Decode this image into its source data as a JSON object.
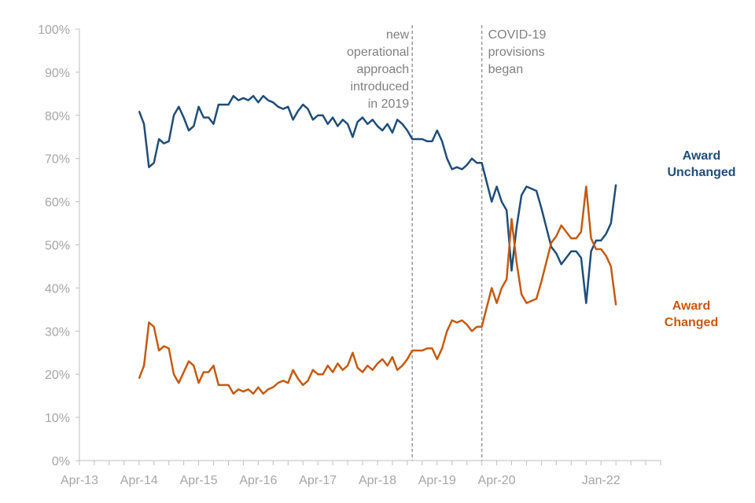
{
  "chart_data": {
    "type": "line",
    "title": "",
    "xlabel": "",
    "ylabel": "",
    "ylim": [
      0,
      100
    ],
    "y_tick_labels": [
      "0%",
      "10%",
      "20%",
      "30%",
      "40%",
      "50%",
      "60%",
      "70%",
      "80%",
      "90%",
      "100%"
    ],
    "x_tick_labels": [
      "Apr-13",
      "Apr-14",
      "Apr-15",
      "Apr-16",
      "Apr-17",
      "Apr-18",
      "Apr-19",
      "Apr-20",
      "Jan-22"
    ],
    "grid": false,
    "legend": "none (series labelled directly at right end of lines)",
    "colors": {
      "unchanged": "#1f4e79",
      "changed": "#c55a11",
      "axis": "#bfbfbf",
      "ticks": "#a6a6a6",
      "annotation": "#808080"
    },
    "annotations": [
      {
        "lines": [
          "new",
          "operational",
          "approach",
          "introduced",
          "in 2019"
        ],
        "at_month_index": 67
      },
      {
        "lines": [
          "COVID-19",
          "provisions",
          "began"
        ],
        "at_month_index": 81
      }
    ],
    "series": [
      {
        "name": "Award Unchanged",
        "label_lines": [
          "Award",
          "Unchanged"
        ],
        "color": "#1f4e79",
        "values": [
          81,
          78,
          68,
          69,
          74.5,
          73.5,
          74,
          80,
          82,
          79.5,
          76.5,
          77.5,
          82,
          79.5,
          79.5,
          78,
          82.5,
          82.5,
          82.5,
          84.5,
          83.5,
          84,
          83.5,
          84.5,
          83,
          84.5,
          83.5,
          83,
          82,
          81.5,
          82,
          79,
          81,
          82.5,
          81.5,
          79,
          80,
          80,
          78,
          79.5,
          77.5,
          79,
          78,
          75,
          78.5,
          79.5,
          78,
          79,
          77.5,
          76.5,
          78,
          76,
          79,
          78,
          76.5,
          74.5,
          74.5,
          74.5,
          74,
          74,
          76.5,
          74,
          70,
          67.5,
          68,
          67.5,
          68.5,
          70,
          69,
          69,
          64.5,
          60,
          63.5,
          60,
          58,
          44,
          54,
          61.5,
          63.5,
          63,
          62.5,
          58.5,
          54,
          49.5,
          48,
          45.5,
          47,
          48.5,
          48.5,
          47,
          36.5,
          48.5,
          51,
          51,
          52.5,
          55,
          64
        ]
      },
      {
        "name": "Award Changed",
        "label_lines": [
          "Award",
          "Changed"
        ],
        "color": "#c55a11",
        "values": [
          19,
          22,
          32,
          31,
          25.5,
          26.5,
          26,
          20,
          18,
          20.5,
          23,
          22,
          18,
          20.5,
          20.5,
          22,
          17.5,
          17.5,
          17.5,
          15.5,
          16.5,
          16,
          16.5,
          15.5,
          17,
          15.5,
          16.5,
          17,
          18,
          18.5,
          18,
          21,
          19,
          17.5,
          18.5,
          21,
          20,
          20,
          22,
          20.5,
          22.5,
          21,
          22,
          25,
          21.5,
          20.5,
          22,
          21,
          22.5,
          23.5,
          22,
          24,
          21,
          22,
          23.5,
          25.5,
          25.5,
          25.5,
          26,
          26,
          23.5,
          26,
          30,
          32.5,
          32,
          32.5,
          31.5,
          30,
          31,
          31,
          35.5,
          40,
          36.5,
          40,
          42,
          56,
          46,
          38.5,
          36.5,
          37,
          37.5,
          41.5,
          46,
          50.5,
          52,
          54.5,
          53,
          51.5,
          51.5,
          53,
          63.5,
          51.5,
          49,
          49,
          47.5,
          45,
          36
        ]
      }
    ]
  }
}
